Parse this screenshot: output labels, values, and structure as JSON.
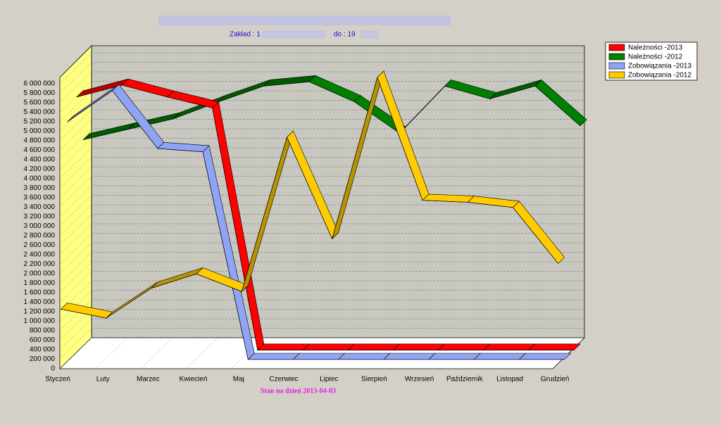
{
  "chart_data": {
    "type": "line",
    "subtitle_left": "Zakład : 1",
    "subtitle_right": "do : 19",
    "footer": "Stan na dzień 2013-04-03",
    "categories": [
      "Styczeń",
      "Luty",
      "Marzec",
      "Kwiecień",
      "Maj",
      "Czerwiec",
      "Lipiec",
      "Sierpień",
      "Wrzesień",
      "Październik",
      "Listopad",
      "Grudzień"
    ],
    "series": [
      {
        "name": "Należności -2013",
        "color": "#ff0000",
        "values": [
          5330000,
          5580000,
          5330000,
          5100000,
          0,
          0,
          0,
          0,
          0,
          0,
          0,
          0
        ]
      },
      {
        "name": "Należności -2012",
        "color": "#008000",
        "values": [
          4300000,
          4520000,
          4740000,
          5100000,
          5430000,
          5520000,
          5100000,
          4440000,
          5430000,
          5160000,
          5430000,
          4590000
        ]
      },
      {
        "name": "Zobowiązania -2013",
        "color": "#8fa4f4",
        "values": [
          5000000,
          5660000,
          4440000,
          4370000,
          0,
          0,
          0,
          0,
          0,
          0,
          0,
          0
        ]
      },
      {
        "name": "Zobowiązania -2012",
        "color": "#ffcc00",
        "values": [
          1190000,
          1000000,
          1630000,
          1930000,
          1560000,
          4810000,
          2670000,
          6070000,
          3480000,
          3440000,
          3330000,
          2150000
        ]
      }
    ],
    "ylim": [
      0,
      6000000
    ],
    "yticks": [
      {
        "value": 0,
        "label": "0"
      },
      {
        "value": 200000,
        "label": "200 000"
      },
      {
        "value": 400000,
        "label": "400 000"
      },
      {
        "value": 600000,
        "label": "600 000"
      },
      {
        "value": 800000,
        "label": "800 000"
      },
      {
        "value": 1000000,
        "label": "1 000 000"
      },
      {
        "value": 1200000,
        "label": "1 200 000"
      },
      {
        "value": 1400000,
        "label": "1 400 000"
      },
      {
        "value": 1600000,
        "label": "1 600 000"
      },
      {
        "value": 1800000,
        "label": "1 800 000"
      },
      {
        "value": 2000000,
        "label": "2 000 000"
      },
      {
        "value": 2200000,
        "label": "2 200 000"
      },
      {
        "value": 2400000,
        "label": "2 400 000"
      },
      {
        "value": 2600000,
        "label": "2 600 000"
      },
      {
        "value": 2800000,
        "label": "2 800 000"
      },
      {
        "value": 3000000,
        "label": "3 000 000"
      },
      {
        "value": 3200000,
        "label": "3 200 000"
      },
      {
        "value": 3400000,
        "label": "3 400 000"
      },
      {
        "value": 3600000,
        "label": "3 600 000"
      },
      {
        "value": 3800000,
        "label": "3 800 000"
      },
      {
        "value": 4000000,
        "label": "4 000 000"
      },
      {
        "value": 4200000,
        "label": "4 200 000"
      },
      {
        "value": 4400000,
        "label": "4 400 000"
      },
      {
        "value": 4600000,
        "label": "4 600 000"
      },
      {
        "value": 4800000,
        "label": "4 800 000"
      },
      {
        "value": 5000000,
        "label": "5 000 000"
      },
      {
        "value": 5200000,
        "label": "5 200 000"
      },
      {
        "value": 5400000,
        "label": "5 400 000"
      },
      {
        "value": 5600000,
        "label": "5 600 000"
      },
      {
        "value": 5800000,
        "label": "5 800 000"
      },
      {
        "value": 6000000,
        "label": "6 000 000"
      }
    ],
    "grid": true,
    "legend": "top-right"
  }
}
